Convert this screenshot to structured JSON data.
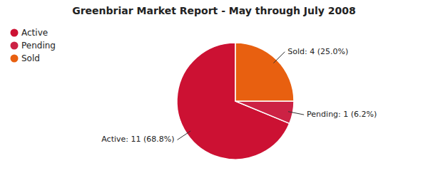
{
  "chart_data": {
    "type": "pie",
    "title": "Greenbriar Market Report - May through July 2008",
    "categories": [
      "Active",
      "Pending",
      "Sold"
    ],
    "values": [
      11,
      1,
      4
    ],
    "colors": [
      "#cc1133",
      "#cc2244",
      "#e86010"
    ],
    "annotations": [
      "Active: 11 (68.8%)",
      "Pending: 1 (6.2%)",
      "Sold: 4 (25.0%)"
    ],
    "legend": "upper left"
  }
}
